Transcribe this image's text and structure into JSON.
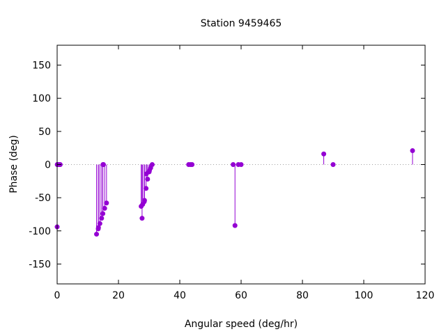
{
  "chart_data": {
    "type": "scatter",
    "style": "impulse-stem",
    "title": "Station 9459465",
    "xlabel": "Angular speed (deg/hr)",
    "ylabel": "Phase (deg)",
    "xlim": [
      0,
      120
    ],
    "ylim": [
      -180,
      180
    ],
    "xticks": [
      0,
      20,
      40,
      60,
      80,
      100,
      120
    ],
    "yticks": [
      -150,
      -100,
      -50,
      0,
      50,
      100,
      150
    ],
    "grid": false,
    "zero_line": "dotted",
    "color": "#9400d3",
    "points": [
      {
        "x": 0.0,
        "y": -94
      },
      {
        "x": 0.04,
        "y": 0
      },
      {
        "x": 0.08,
        "y": 0
      },
      {
        "x": 0.55,
        "y": 0
      },
      {
        "x": 1.0,
        "y": 0
      },
      {
        "x": 12.85,
        "y": -105
      },
      {
        "x": 13.4,
        "y": -97
      },
      {
        "x": 13.47,
        "y": -95
      },
      {
        "x": 13.94,
        "y": -89
      },
      {
        "x": 14.5,
        "y": -81
      },
      {
        "x": 14.9,
        "y": -74
      },
      {
        "x": 14.96,
        "y": 0
      },
      {
        "x": 15.04,
        "y": 0
      },
      {
        "x": 15.1,
        "y": 0
      },
      {
        "x": 15.5,
        "y": -66
      },
      {
        "x": 16.1,
        "y": -58
      },
      {
        "x": 27.4,
        "y": -63
      },
      {
        "x": 27.7,
        "y": -81
      },
      {
        "x": 27.9,
        "y": -60
      },
      {
        "x": 28.4,
        "y": -56
      },
      {
        "x": 28.5,
        "y": -54
      },
      {
        "x": 29.0,
        "y": -36
      },
      {
        "x": 29.1,
        "y": -14
      },
      {
        "x": 29.5,
        "y": -22
      },
      {
        "x": 30.0,
        "y": -11
      },
      {
        "x": 30.1,
        "y": -9
      },
      {
        "x": 30.5,
        "y": -5
      },
      {
        "x": 31.0,
        "y": 0
      },
      {
        "x": 42.9,
        "y": 0
      },
      {
        "x": 43.5,
        "y": 0
      },
      {
        "x": 44.0,
        "y": 0
      },
      {
        "x": 57.4,
        "y": 0
      },
      {
        "x": 58.0,
        "y": -92
      },
      {
        "x": 59.1,
        "y": 0
      },
      {
        "x": 60.0,
        "y": 0
      },
      {
        "x": 86.95,
        "y": 16
      },
      {
        "x": 90.0,
        "y": 0
      },
      {
        "x": 115.9,
        "y": 21
      }
    ]
  }
}
